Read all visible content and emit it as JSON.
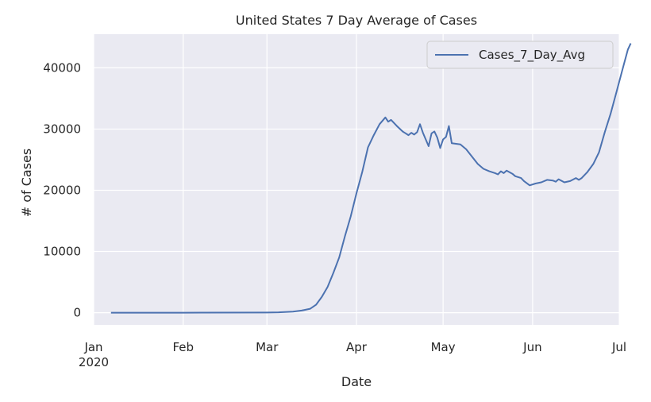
{
  "chart_data": {
    "type": "line",
    "title": "United States 7 Day Average of Cases",
    "xlabel": "Date",
    "ylabel": "# of Cases",
    "x_range": [
      "2020-01-01",
      "2020-07-01"
    ],
    "ylim": [
      -2000,
      45500
    ],
    "y_ticks": [
      0,
      10000,
      20000,
      30000,
      40000
    ],
    "x_ticks": [
      {
        "date": "2020-01-01",
        "label": "Jan",
        "sublabel": "2020"
      },
      {
        "date": "2020-02-01",
        "label": "Feb",
        "sublabel": ""
      },
      {
        "date": "2020-03-01",
        "label": "Mar",
        "sublabel": ""
      },
      {
        "date": "2020-04-01",
        "label": "Apr",
        "sublabel": ""
      },
      {
        "date": "2020-05-01",
        "label": "May",
        "sublabel": ""
      },
      {
        "date": "2020-06-01",
        "label": "Jun",
        "sublabel": ""
      },
      {
        "date": "2020-07-01",
        "label": "Jul",
        "sublabel": ""
      }
    ],
    "grid": true,
    "legend_position": "upper right",
    "series": [
      {
        "name": "Cases_7_Day_Avg",
        "color": "#4c72b0",
        "points": [
          [
            "2020-01-07",
            0
          ],
          [
            "2020-02-01",
            0
          ],
          [
            "2020-03-01",
            20
          ],
          [
            "2020-03-05",
            60
          ],
          [
            "2020-03-10",
            180
          ],
          [
            "2020-03-13",
            350
          ],
          [
            "2020-03-16",
            650
          ],
          [
            "2020-03-18",
            1300
          ],
          [
            "2020-03-20",
            2600
          ],
          [
            "2020-03-22",
            4200
          ],
          [
            "2020-03-24",
            6500
          ],
          [
            "2020-03-26",
            9000
          ],
          [
            "2020-03-28",
            12500
          ],
          [
            "2020-03-30",
            15700
          ],
          [
            "2020-04-01",
            19500
          ],
          [
            "2020-04-03",
            23000
          ],
          [
            "2020-04-05",
            27000
          ],
          [
            "2020-04-07",
            29000
          ],
          [
            "2020-04-09",
            30800
          ],
          [
            "2020-04-11",
            31900
          ],
          [
            "2020-04-12",
            31200
          ],
          [
            "2020-04-13",
            31500
          ],
          [
            "2020-04-15",
            30500
          ],
          [
            "2020-04-17",
            29600
          ],
          [
            "2020-04-19",
            29000
          ],
          [
            "2020-04-20",
            29400
          ],
          [
            "2020-04-21",
            29100
          ],
          [
            "2020-04-22",
            29500
          ],
          [
            "2020-04-23",
            30800
          ],
          [
            "2020-04-24",
            29400
          ],
          [
            "2020-04-26",
            27200
          ],
          [
            "2020-04-27",
            29300
          ],
          [
            "2020-04-28",
            29600
          ],
          [
            "2020-04-29",
            28600
          ],
          [
            "2020-04-30",
            26900
          ],
          [
            "2020-05-01",
            28300
          ],
          [
            "2020-05-02",
            28700
          ],
          [
            "2020-05-03",
            30500
          ],
          [
            "2020-05-04",
            27700
          ],
          [
            "2020-05-07",
            27500
          ],
          [
            "2020-05-09",
            26700
          ],
          [
            "2020-05-11",
            25500
          ],
          [
            "2020-05-13",
            24300
          ],
          [
            "2020-05-15",
            23500
          ],
          [
            "2020-05-17",
            23100
          ],
          [
            "2020-05-19",
            22800
          ],
          [
            "2020-05-20",
            22600
          ],
          [
            "2020-05-21",
            23100
          ],
          [
            "2020-05-22",
            22800
          ],
          [
            "2020-05-23",
            23200
          ],
          [
            "2020-05-25",
            22700
          ],
          [
            "2020-05-26",
            22300
          ],
          [
            "2020-05-28",
            22000
          ],
          [
            "2020-05-29",
            21500
          ],
          [
            "2020-05-31",
            20800
          ],
          [
            "2020-06-02",
            21100
          ],
          [
            "2020-06-04",
            21300
          ],
          [
            "2020-06-06",
            21700
          ],
          [
            "2020-06-08",
            21600
          ],
          [
            "2020-06-09",
            21400
          ],
          [
            "2020-06-10",
            21800
          ],
          [
            "2020-06-12",
            21300
          ],
          [
            "2020-06-14",
            21500
          ],
          [
            "2020-06-16",
            22000
          ],
          [
            "2020-06-17",
            21700
          ],
          [
            "2020-06-18",
            22000
          ],
          [
            "2020-06-20",
            23000
          ],
          [
            "2020-06-22",
            24300
          ],
          [
            "2020-06-24",
            26200
          ],
          [
            "2020-06-26",
            29500
          ],
          [
            "2020-06-28",
            32500
          ],
          [
            "2020-06-30",
            36000
          ],
          [
            "2020-07-02",
            39500
          ],
          [
            "2020-07-04",
            43000
          ],
          [
            "2020-07-05",
            44000
          ]
        ]
      }
    ]
  }
}
